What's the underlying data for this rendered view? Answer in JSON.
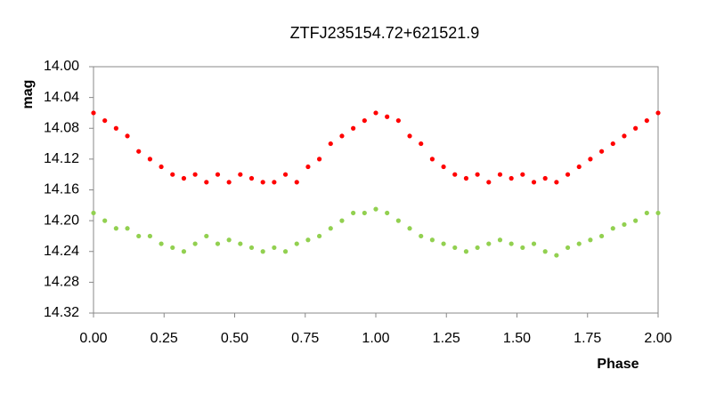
{
  "chart_data": {
    "type": "scatter",
    "title": "ZTFJ235154.72+621521.9",
    "x_label": "Phase",
    "y_label": "mag",
    "y_inverted": true,
    "grid": false,
    "xlim": [
      0,
      2
    ],
    "ylim": [
      14.0,
      14.32
    ],
    "xticks": [
      {
        "value": 0,
        "label": "0.00"
      },
      0.25,
      {
        "value": 0.5,
        "label": "0.50"
      },
      0.75,
      {
        "value": 1,
        "label": "1.00"
      },
      1.25,
      {
        "value": 1.5,
        "label": "1.50"
      },
      1.75,
      {
        "value": 2,
        "label": "2.00"
      }
    ],
    "yticks": [
      {
        "value": 14,
        "label": "14.00"
      },
      14.04,
      14.08,
      14.12,
      14.16,
      {
        "value": 14.2,
        "label": "14.20"
      },
      14.24,
      14.28,
      14.32
    ],
    "x": [
      0,
      0.04,
      0.08,
      0.12,
      0.16,
      0.2,
      0.24,
      0.28,
      0.32,
      0.36,
      0.4,
      0.44,
      0.48,
      0.52,
      0.56,
      0.6,
      0.64,
      0.68,
      0.72,
      0.76,
      0.8,
      0.84,
      0.88,
      0.92,
      0.96,
      1,
      1.04,
      1.08,
      1.12,
      1.16,
      1.2,
      1.24,
      1.28,
      1.32,
      1.36,
      1.4,
      1.44,
      1.48,
      1.52,
      1.56,
      1.6,
      1.64,
      1.68,
      1.72,
      1.76,
      1.8,
      1.84,
      1.88,
      1.92,
      1.96,
      2
    ],
    "series": [
      {
        "color": "#ff0000",
        "values": [
          14.06,
          14.07,
          14.08,
          14.09,
          14.11,
          14.12,
          14.13,
          14.14,
          14.145,
          14.14,
          14.15,
          14.14,
          14.15,
          14.14,
          14.145,
          14.15,
          14.15,
          14.14,
          14.15,
          14.13,
          14.12,
          14.1,
          14.09,
          14.08,
          14.07,
          14.06,
          14.065,
          14.07,
          14.09,
          14.1,
          14.12,
          14.13,
          14.14,
          14.145,
          14.14,
          14.15,
          14.14,
          14.145,
          14.14,
          14.15,
          14.145,
          14.15,
          14.14,
          14.13,
          14.12,
          14.11,
          14.1,
          14.09,
          14.08,
          14.07,
          14.06
        ]
      },
      {
        "color": "#92d050",
        "values": [
          14.19,
          14.2,
          14.21,
          14.21,
          14.22,
          14.22,
          14.23,
          14.235,
          14.24,
          14.23,
          14.22,
          14.23,
          14.225,
          14.23,
          14.235,
          14.24,
          14.235,
          14.24,
          14.23,
          14.225,
          14.22,
          14.21,
          14.2,
          14.19,
          14.19,
          14.185,
          14.19,
          14.2,
          14.21,
          14.22,
          14.225,
          14.23,
          14.235,
          14.24,
          14.235,
          14.23,
          14.225,
          14.23,
          14.235,
          14.23,
          14.24,
          14.245,
          14.235,
          14.23,
          14.225,
          14.22,
          14.21,
          14.205,
          14.2,
          14.19,
          14.19
        ]
      }
    ]
  }
}
